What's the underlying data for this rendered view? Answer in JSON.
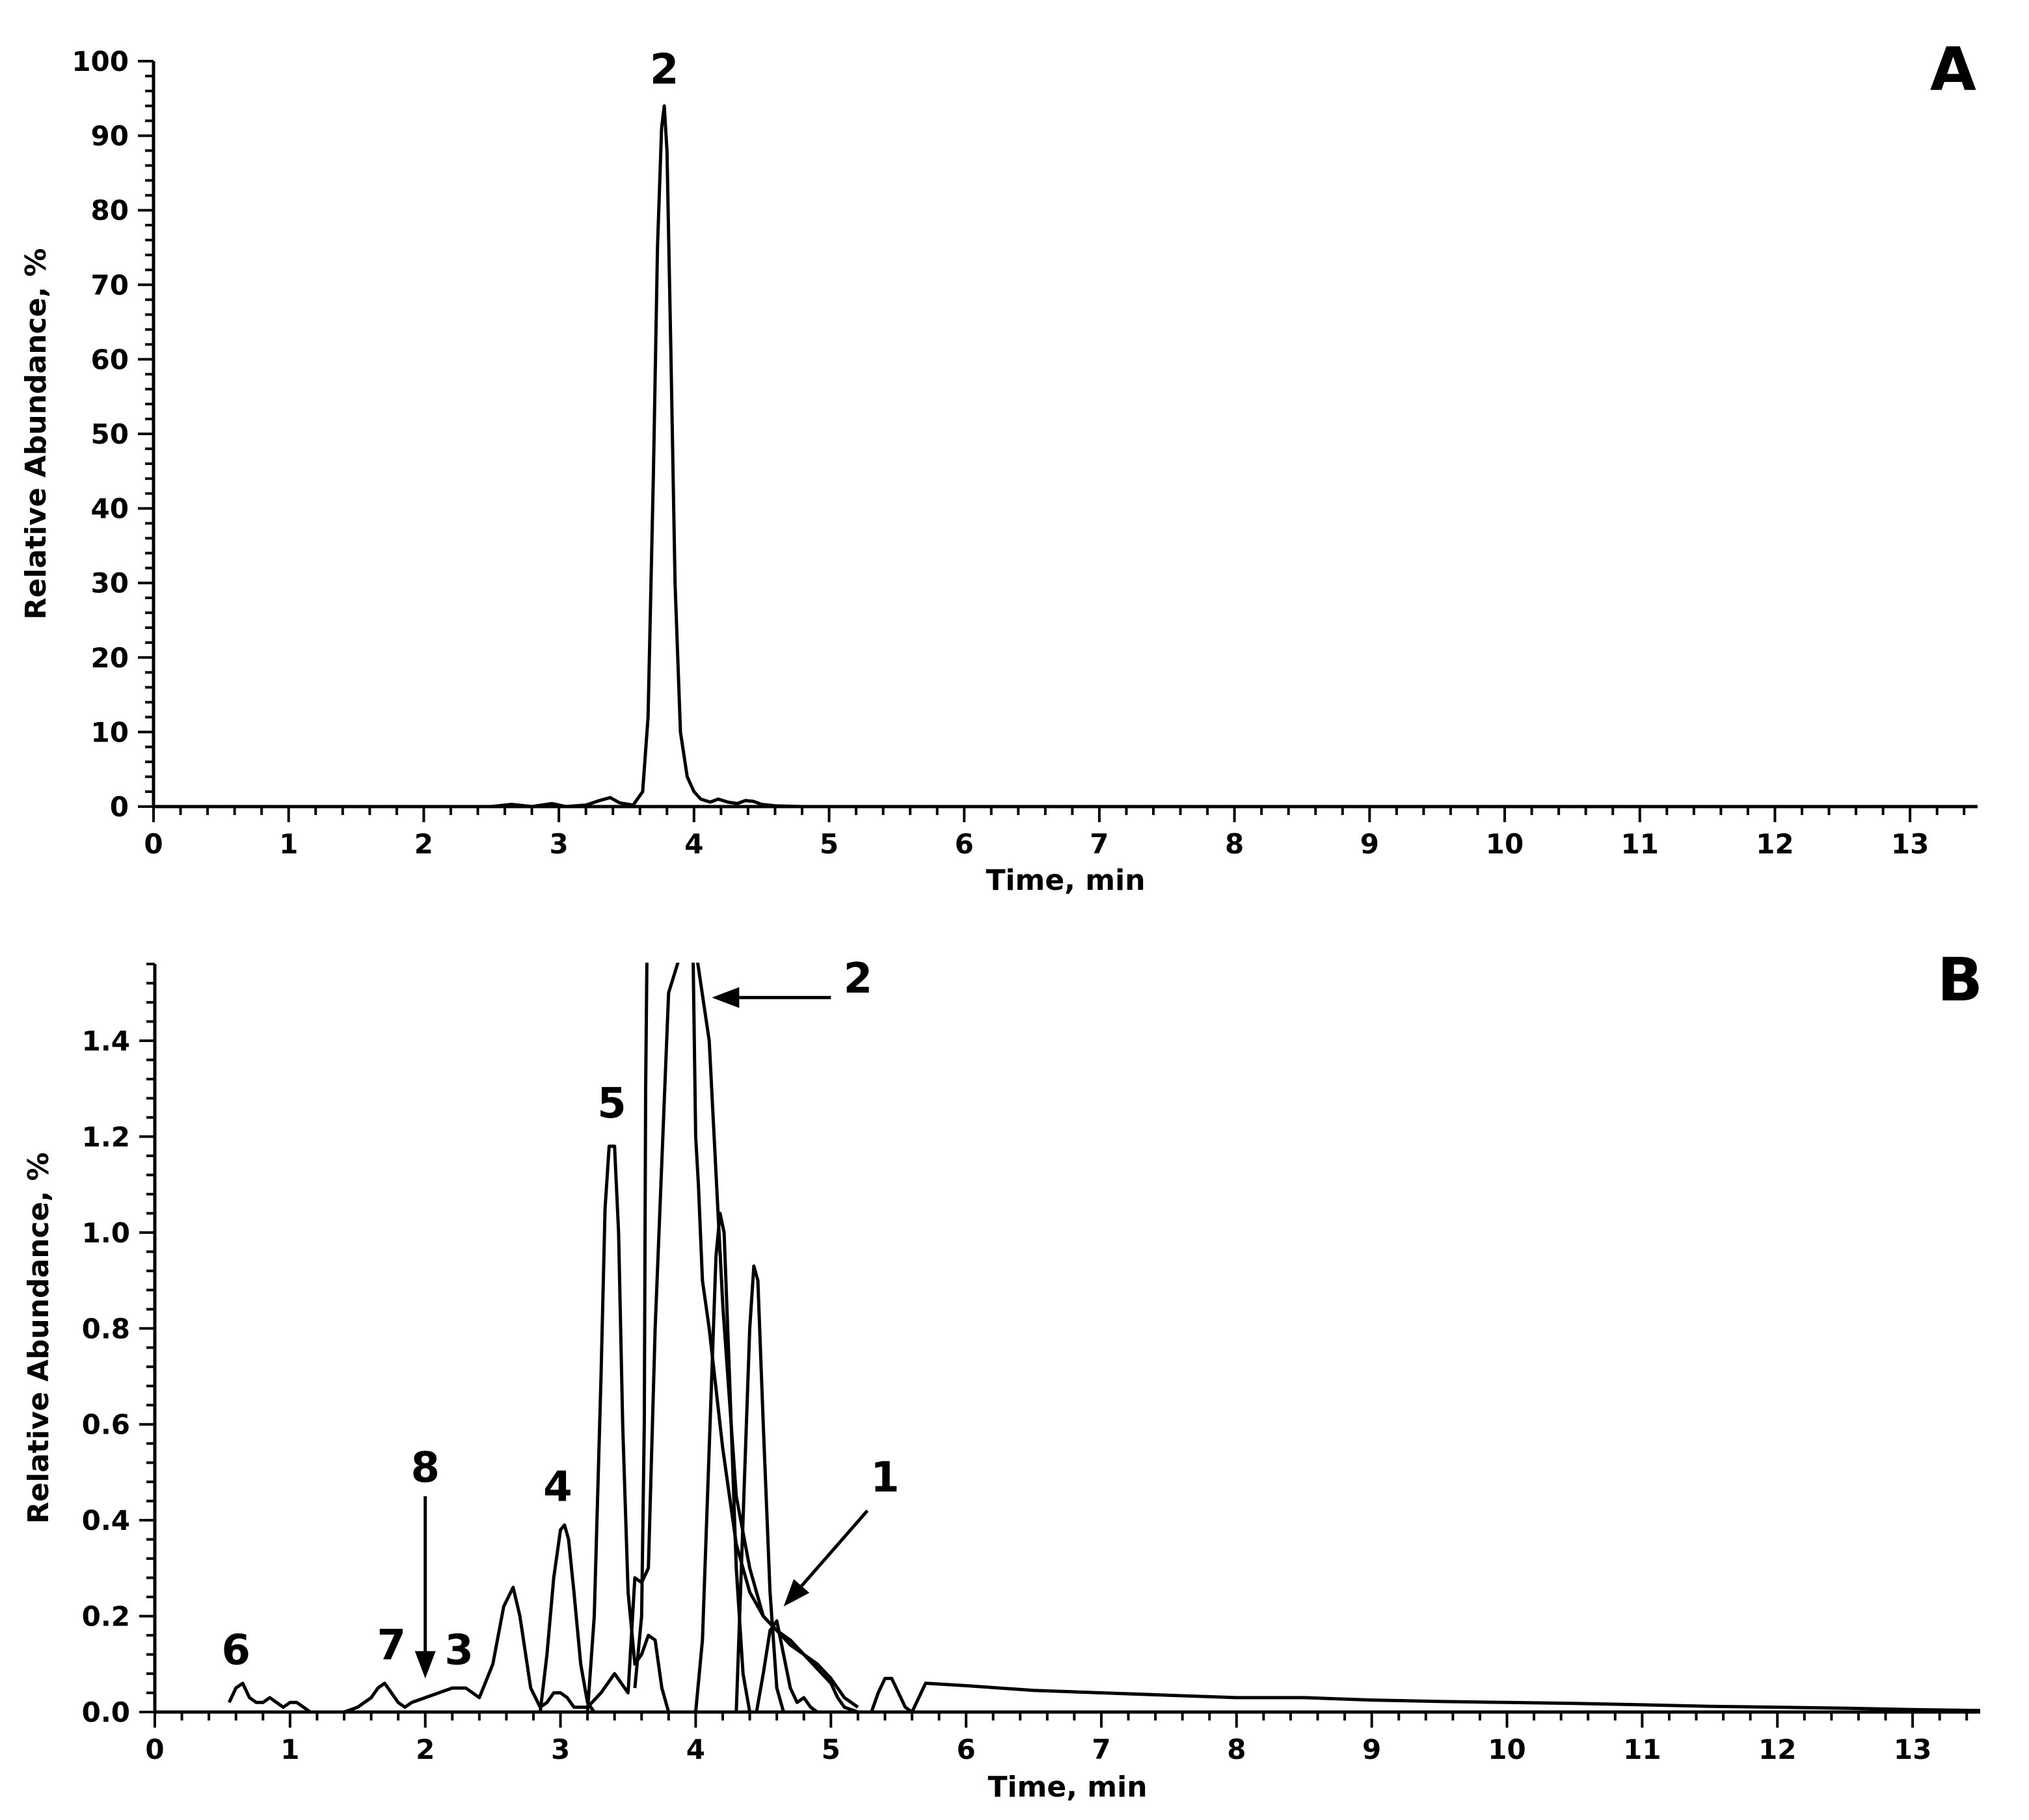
{
  "chart_data": [
    {
      "type": "line",
      "panel": "A",
      "xlabel": "Time, min",
      "ylabel": "Relative Abundance, %",
      "xlim": [
        0,
        13.5
      ],
      "ylim": [
        0,
        100
      ],
      "xticks": [
        "0",
        "1",
        "2",
        "3",
        "4",
        "5",
        "6",
        "7",
        "8",
        "9",
        "10",
        "11",
        "12",
        "13"
      ],
      "yticks": [
        "0",
        "10",
        "20",
        "30",
        "40",
        "50",
        "60",
        "70",
        "80",
        "90",
        "100"
      ],
      "annotations": [
        {
          "text": "2",
          "x": 3.78,
          "y": 97
        }
      ],
      "series": [
        {
          "x": [
            0,
            2.5,
            2.65,
            2.8,
            2.95,
            3.05,
            3.2,
            3.3,
            3.38,
            3.45,
            3.55,
            3.62,
            3.66,
            3.7,
            3.73,
            3.76,
            3.78,
            3.8,
            3.83,
            3.86,
            3.9,
            3.95,
            4.0,
            4.05,
            4.12,
            4.18,
            4.25,
            4.32,
            4.38,
            4.44,
            4.5,
            4.6,
            4.8,
            13.5
          ],
          "y": [
            0,
            0,
            0.3,
            0,
            0.4,
            0,
            0.2,
            0.8,
            1.2,
            0.5,
            0.2,
            2,
            12,
            45,
            75,
            91,
            94,
            88,
            60,
            30,
            10,
            4,
            2,
            1,
            0.6,
            1,
            0.6,
            0.4,
            0.8,
            0.7,
            0.3,
            0.1,
            0,
            0
          ]
        }
      ]
    },
    {
      "type": "line",
      "panel": "B",
      "xlabel": "Time, min",
      "ylabel": "Relative Abundance, %",
      "xlim": [
        0,
        13.5
      ],
      "ylim": [
        0,
        1.56
      ],
      "xticks": [
        "0",
        "1",
        "2",
        "3",
        "4",
        "5",
        "6",
        "7",
        "8",
        "9",
        "10",
        "11",
        "12",
        "13"
      ],
      "yticks": [
        "0.0",
        "0.2",
        "0.4",
        "0.6",
        "0.8",
        "1.0",
        "1.2",
        "1.4"
      ],
      "annotations": [
        {
          "text": "6",
          "x": 0.6,
          "y": 0.1
        },
        {
          "text": "7",
          "x": 1.75,
          "y": 0.11
        },
        {
          "text": "3",
          "x": 2.25,
          "y": 0.1
        },
        {
          "text": "8",
          "x": 2.0,
          "y": 0.48
        },
        {
          "text": "4",
          "x": 2.98,
          "y": 0.44
        },
        {
          "text": "5",
          "x": 3.38,
          "y": 1.24
        },
        {
          "text": "2",
          "x": 5.2,
          "y": 1.5
        },
        {
          "text": "1",
          "x": 5.4,
          "y": 0.46
        }
      ],
      "series": [
        {
          "x": [
            0.55,
            0.6,
            0.65,
            0.7,
            0.75,
            0.8,
            0.85,
            0.9,
            0.95,
            1.0,
            1.05,
            1.1,
            1.15,
            1.2,
            1.3,
            1.4,
            1.5,
            1.6,
            1.65,
            1.7,
            1.75,
            1.8,
            1.85,
            1.9,
            2.0,
            2.1,
            2.2,
            2.3,
            2.4,
            2.5,
            2.58,
            2.65,
            2.7,
            2.78,
            2.85,
            2.9,
            2.95,
            3.0,
            3.05,
            3.1,
            3.2,
            3.3,
            3.4,
            3.5,
            3.55,
            3.6,
            3.65,
            3.7,
            3.8,
            3.9,
            4.0,
            4.1,
            4.2,
            4.3,
            4.4,
            4.5,
            4.6,
            4.7,
            4.8,
            4.9,
            5.0,
            5.1,
            5.2
          ],
          "y": [
            0.02,
            0.05,
            0.06,
            0.03,
            0.02,
            0.02,
            0.03,
            0.02,
            0.01,
            0.02,
            0.02,
            0.01,
            0,
            0,
            0,
            0,
            0.01,
            0.03,
            0.05,
            0.06,
            0.04,
            0.02,
            0.01,
            0.02,
            0.03,
            0.04,
            0.05,
            0.05,
            0.03,
            0.1,
            0.22,
            0.26,
            0.2,
            0.05,
            0.01,
            0.02,
            0.04,
            0.04,
            0.03,
            0.01,
            0.01,
            0.04,
            0.08,
            0.04,
            0.28,
            0.27,
            0.3,
            0.8,
            1.5,
            1.6,
            1.6,
            1.4,
            0.85,
            0.45,
            0.3,
            0.2,
            0.17,
            0.14,
            0.12,
            0.1,
            0.07,
            0.03,
            0.01
          ]
        },
        {
          "x": [
            3.55,
            3.6,
            3.62,
            3.63,
            3.64,
            3.7,
            3.8,
            3.9,
            3.95,
            3.98,
            4.0,
            4.02,
            4.05,
            4.1,
            4.2,
            4.3,
            4.4,
            4.5,
            4.6,
            4.7,
            4.8,
            4.9,
            5.0,
            5.05,
            5.1,
            5.2
          ],
          "y": [
            0.05,
            0.2,
            0.6,
            1.3,
            1.6,
            1.6,
            1.6,
            1.6,
            1.6,
            1.6,
            1.2,
            1.1,
            0.9,
            0.8,
            0.55,
            0.35,
            0.25,
            0.2,
            0.17,
            0.15,
            0.12,
            0.09,
            0.06,
            0.03,
            0.01,
            0
          ]
        },
        {
          "x": [
            3.2,
            3.25,
            3.3,
            3.33,
            3.36,
            3.4,
            3.43,
            3.46,
            3.5,
            3.55,
            3.6,
            3.65,
            3.7,
            3.75,
            3.8
          ],
          "y": [
            0,
            0.2,
            0.7,
            1.05,
            1.18,
            1.18,
            1.0,
            0.6,
            0.25,
            0.1,
            0.12,
            0.16,
            0.15,
            0.05,
            0
          ]
        },
        {
          "x": [
            2.85,
            2.9,
            2.95,
            3.0,
            3.03,
            3.06,
            3.1,
            3.15,
            3.2,
            3.25
          ],
          "y": [
            0,
            0.12,
            0.28,
            0.38,
            0.39,
            0.36,
            0.25,
            0.1,
            0.02,
            0
          ]
        },
        {
          "x": [
            4.0,
            4.05,
            4.1,
            4.15,
            4.18,
            4.21,
            4.25,
            4.3,
            4.35,
            4.4
          ],
          "y": [
            0,
            0.15,
            0.55,
            0.95,
            1.04,
            1.0,
            0.7,
            0.3,
            0.08,
            0
          ]
        },
        {
          "x": [
            4.3,
            4.35,
            4.4,
            4.43,
            4.46,
            4.5,
            4.55,
            4.6,
            4.65
          ],
          "y": [
            0,
            0.4,
            0.8,
            0.93,
            0.9,
            0.6,
            0.25,
            0.05,
            0
          ]
        },
        {
          "x": [
            4.45,
            4.5,
            4.55,
            4.6,
            4.65,
            4.7,
            4.75,
            4.8,
            4.85,
            4.9
          ],
          "y": [
            0,
            0.08,
            0.17,
            0.19,
            0.12,
            0.05,
            0.02,
            0.03,
            0.01,
            0
          ]
        },
        {
          "x": [
            5.3,
            5.35,
            5.4,
            5.45,
            5.5,
            5.55,
            5.6
          ],
          "y": [
            0,
            0.04,
            0.07,
            0.07,
            0.04,
            0.01,
            0
          ]
        },
        {
          "x": [
            5.6,
            5.7,
            6.0,
            6.5,
            7.0,
            7.5,
            8.0,
            8.5,
            9.0,
            9.5,
            10.0,
            10.5,
            11.0,
            11.5,
            12.0,
            12.5,
            13.0,
            13.5
          ],
          "y": [
            0,
            0.06,
            0.055,
            0.045,
            0.04,
            0.035,
            0.03,
            0.03,
            0.025,
            0.022,
            0.02,
            0.018,
            0.015,
            0.012,
            0.01,
            0.008,
            0.005,
            0.003
          ]
        }
      ]
    }
  ]
}
